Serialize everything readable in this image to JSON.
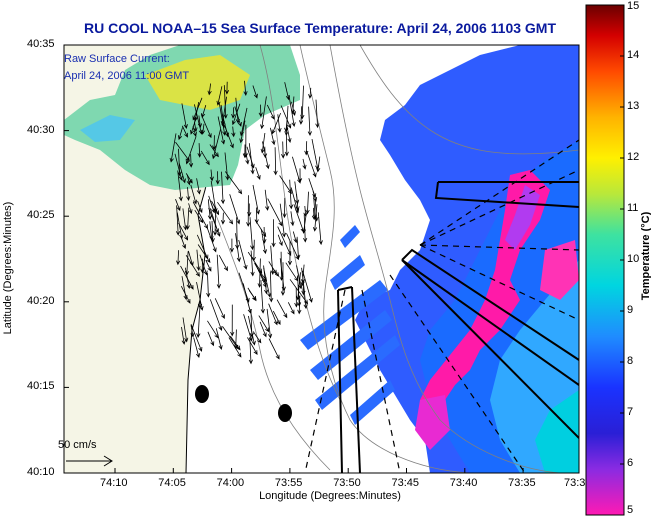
{
  "title": "RU COOL  NOAA–15  Sea Surface Temperature:  April 24, 2006 1103 GMT",
  "annotation": {
    "line1": "Raw Surface Current:",
    "line2": "April 24, 2006 11:00 GMT"
  },
  "axes": {
    "xlabel": "Longitude (Degrees:Minutes)",
    "ylabel": "Latitude (Degrees:Minutes)",
    "xticks": [
      "74:10",
      "74:05",
      "74:00",
      "73:55",
      "73:50",
      "73:45",
      "73:40",
      "73:35",
      "73:3"
    ],
    "yticks": [
      "40:35",
      "40:30",
      "40:25",
      "40:20",
      "40:15",
      "40:10"
    ]
  },
  "colorbar": {
    "label": "Temperature (°C)",
    "ticks": [
      "15",
      "14",
      "13",
      "12",
      "11",
      "10",
      "9",
      "8",
      "7",
      "6",
      "5"
    ],
    "min": 5,
    "max": 15
  },
  "scale": {
    "label": "50 cm/s"
  },
  "colors": {
    "title": "#0a1a9e",
    "annotation": "#1a2fb0",
    "land": "#f5f5e6",
    "nodata": "#ffffff"
  }
}
